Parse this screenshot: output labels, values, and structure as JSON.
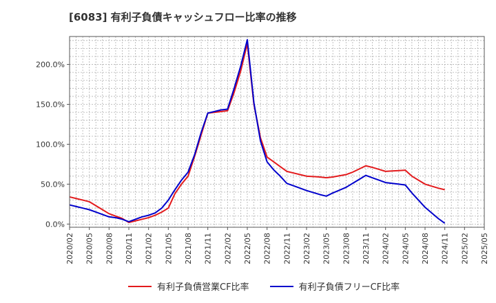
{
  "title": "[6083]  有利子負債キャッシュフロー比率の推移",
  "chart_data": {
    "type": "line",
    "title": "[6083]  有利子負債キャッシュフロー比率の推移",
    "xlabel": "",
    "ylabel": "",
    "ylim": [
      -4,
      235
    ],
    "yticks": [
      0,
      50,
      100,
      150,
      200
    ],
    "ytick_labels": [
      "0.0%",
      "50.0%",
      "100.0%",
      "150.0%",
      "200.0%"
    ],
    "xticks": [
      "2020/02",
      "2020/05",
      "2020/08",
      "2020/11",
      "2021/02",
      "2021/05",
      "2021/08",
      "2021/11",
      "2022/02",
      "2022/05",
      "2022/08",
      "2022/11",
      "2023/02",
      "2023/05",
      "2023/08",
      "2023/11",
      "2024/02",
      "2024/05",
      "2024/08",
      "2024/11",
      "2025/02",
      "2025/05"
    ],
    "grid": true,
    "legend_position": "bottom",
    "x": [
      "2020/02",
      "2020/03",
      "2020/04",
      "2020/05",
      "2020/06",
      "2020/07",
      "2020/08",
      "2020/09",
      "2020/10",
      "2020/11",
      "2020/12",
      "2021/01",
      "2021/02",
      "2021/03",
      "2021/04",
      "2021/05",
      "2021/06",
      "2021/07",
      "2021/08",
      "2021/09",
      "2021/10",
      "2021/11",
      "2021/12",
      "2022/01",
      "2022/02",
      "2022/03",
      "2022/04",
      "2022/05",
      "2022/06",
      "2022/07",
      "2022/08",
      "2022/09",
      "2022/10",
      "2022/11",
      "2022/12",
      "2023/01",
      "2023/02",
      "2023/03",
      "2023/04",
      "2023/05",
      "2023/06",
      "2023/07",
      "2023/08",
      "2023/09",
      "2023/10",
      "2023/11",
      "2023/12",
      "2024/01",
      "2024/02",
      "2024/03",
      "2024/04",
      "2024/05",
      "2024/06",
      "2024/07",
      "2024/08",
      "2024/09",
      "2024/10",
      "2024/11"
    ],
    "series": [
      {
        "name": "有利子負債営業CF比率",
        "color": "#e31a1c",
        "values": [
          34,
          32,
          30,
          28,
          23,
          18,
          13,
          10,
          7,
          2,
          4,
          6,
          8,
          11,
          15,
          20,
          38,
          50,
          60,
          85,
          112,
          139,
          140,
          141,
          142,
          165,
          192,
          226,
          150,
          108,
          84,
          78,
          72,
          66,
          64,
          62,
          60,
          59.5,
          59,
          58,
          59,
          60.5,
          62,
          65,
          69,
          73,
          71,
          68.5,
          66,
          66.5,
          67,
          67.5,
          60,
          55,
          50,
          47.5,
          45,
          43
        ]
      },
      {
        "name": "有利子負債フリーCF比率",
        "color": "#0000cc",
        "values": [
          24,
          22,
          20,
          18,
          15,
          12,
          9,
          8,
          6,
          3,
          6,
          9,
          11,
          14,
          20,
          30,
          43,
          55,
          65,
          87,
          115,
          139,
          141,
          143,
          144,
          170,
          198,
          231,
          152,
          104,
          78,
          68,
          60,
          51,
          48,
          45,
          42,
          39.5,
          37,
          35,
          39,
          42.5,
          46,
          51,
          56,
          61,
          58,
          55,
          52,
          51,
          50,
          49,
          39,
          30,
          21,
          14,
          7,
          1
        ]
      }
    ]
  }
}
